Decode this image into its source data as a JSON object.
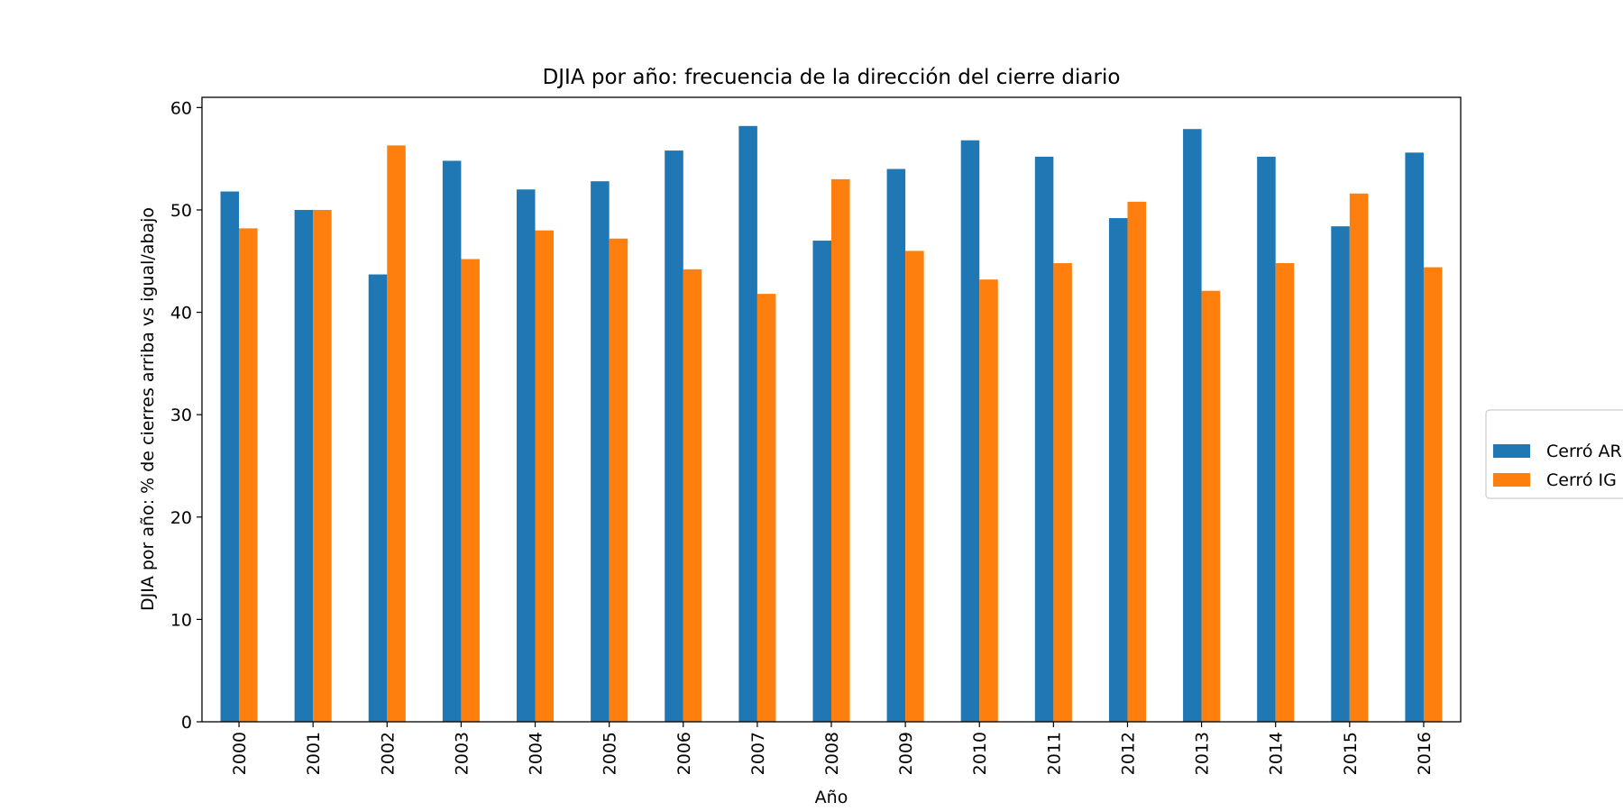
{
  "chart_data": {
    "type": "bar",
    "title": "DJIA por año: frecuencia de la dirección del cierre diario",
    "xlabel": "Año",
    "ylabel": "DJIA por año: % de cierres arriba vs igual/abajo",
    "ylim": [
      0,
      61
    ],
    "yticks": [
      0,
      10,
      20,
      30,
      40,
      50,
      60
    ],
    "grid": false,
    "legend_position": "right",
    "categories": [
      "2000",
      "2001",
      "2002",
      "2003",
      "2004",
      "2005",
      "2006",
      "2007",
      "2008",
      "2009",
      "2010",
      "2011",
      "2012",
      "2013",
      "2014",
      "2015",
      "2016"
    ],
    "series": [
      {
        "name": "Cerró AR",
        "color": "#1f77b4",
        "values": [
          51.8,
          50.0,
          43.7,
          54.8,
          52.0,
          52.8,
          55.8,
          58.2,
          47.0,
          54.0,
          56.8,
          55.2,
          49.2,
          57.9,
          55.2,
          48.4,
          55.6
        ]
      },
      {
        "name": "Cerró IG",
        "color": "#ff7f0e",
        "values": [
          48.2,
          50.0,
          56.3,
          45.2,
          48.0,
          47.2,
          44.2,
          41.8,
          53.0,
          46.0,
          43.2,
          44.8,
          50.8,
          42.1,
          44.8,
          51.6,
          44.4
        ]
      }
    ]
  }
}
